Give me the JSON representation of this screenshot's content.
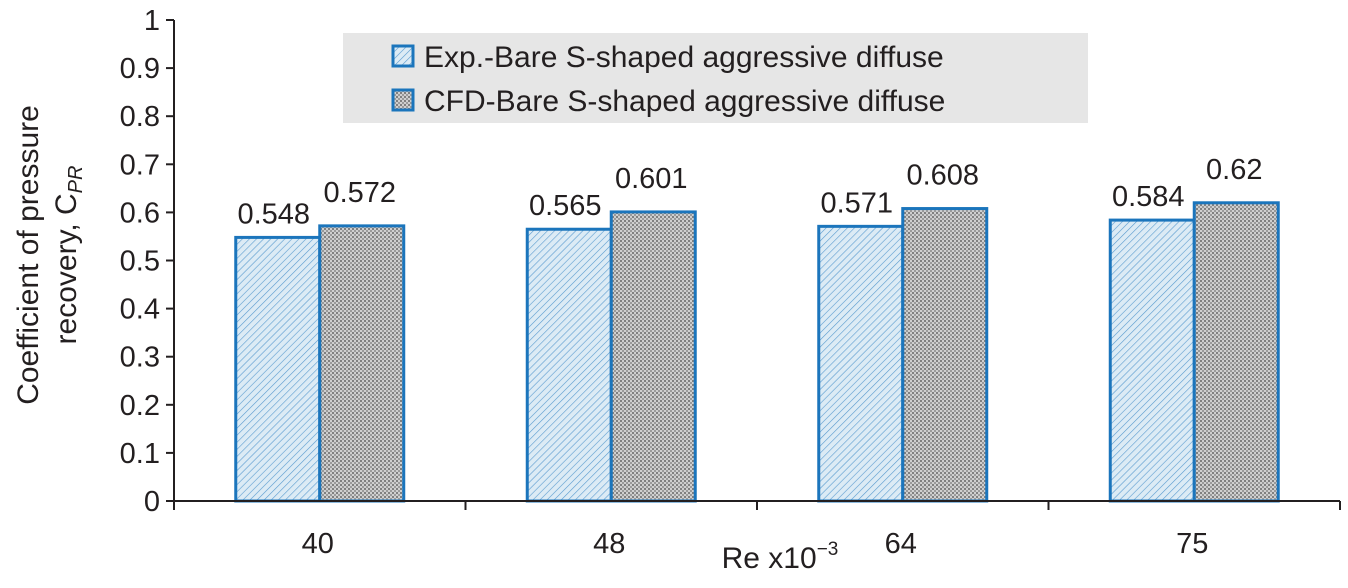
{
  "chart_data": {
    "type": "bar",
    "title": "",
    "xlabel": "Re x10",
    "xlabel_exponent": "−3",
    "ylabel_line1": "Coefficient of pressure",
    "ylabel_line2": "recovery, C",
    "ylabel_subscript": "PR",
    "categories": [
      "40",
      "48",
      "64",
      "75"
    ],
    "ylim": [
      0,
      1
    ],
    "yticks": [
      "0",
      "0.1",
      "0.2",
      "0.3",
      "0.4",
      "0.5",
      "0.6",
      "0.7",
      "0.8",
      "0.9",
      "1"
    ],
    "series": [
      {
        "name": "Exp.-Bare S-shaped aggressive diffuse",
        "values": [
          0.548,
          0.565,
          0.571,
          0.584
        ],
        "labels": [
          "0.548",
          "0.565",
          "0.571",
          "0.584"
        ],
        "pattern": "diagonal-hatch-light"
      },
      {
        "name": "CFD-Bare S-shaped aggressive diffuse",
        "values": [
          0.572,
          0.601,
          0.608,
          0.62
        ],
        "labels": [
          "0.572",
          "0.601",
          "0.608",
          "0.62"
        ],
        "pattern": "dense-dots-gray"
      }
    ],
    "legend_position": "top-center",
    "grid": false
  },
  "colors": {
    "bar_border": "#1b75bc",
    "axis": "#231f20",
    "legend_bg": "#e6e6e6",
    "series1_fill": "#dcebf5",
    "series1_hatch": "#5a9bcf",
    "series2_fill": "#c9c9c9",
    "series2_dot": "#7d7d7d"
  }
}
